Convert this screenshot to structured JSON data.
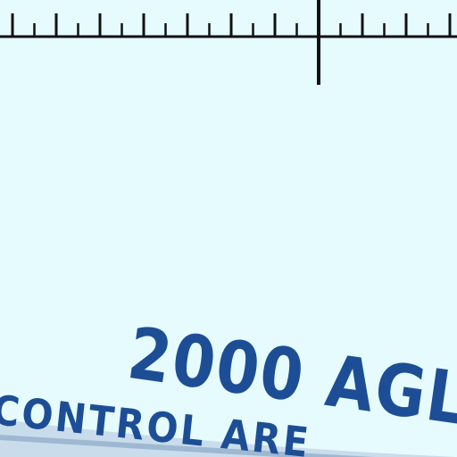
{
  "map": {
    "background_color": "#e6fbfe",
    "ink_color": "#111111",
    "airspace_color": "#1d4e95",
    "airspace_tint": "#c9dcec",
    "altitude_label": "2000 AGL",
    "airspace_label": "CONTROL ARE"
  }
}
